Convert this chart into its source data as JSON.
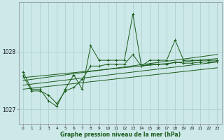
{
  "xlabel_label": "Graphe pression niveau de la mer (hPa)",
  "background_color": "#cce8e8",
  "grid_color": "#aacccc",
  "line_color": "#1a5c1a",
  "xlim": [
    -0.5,
    23.5
  ],
  "ylim": [
    1026.75,
    1028.85
  ],
  "yticks": [
    1027,
    1028
  ],
  "xticks": [
    0,
    1,
    2,
    3,
    4,
    5,
    6,
    7,
    8,
    9,
    10,
    11,
    12,
    13,
    14,
    15,
    16,
    17,
    18,
    19,
    20,
    21,
    22,
    23
  ],
  "y_volatile": [
    1027.65,
    1027.35,
    1027.35,
    1027.15,
    1027.05,
    1027.35,
    1027.6,
    1027.35,
    1028.1,
    1027.85,
    1027.85,
    1027.85,
    1027.85,
    1028.65,
    1027.75,
    1027.85,
    1027.85,
    1027.85,
    1028.2,
    1027.85,
    1027.85,
    1027.85,
    1027.85,
    1027.85
  ],
  "y_smooth": [
    1027.58,
    1027.32,
    1027.32,
    1027.25,
    1027.1,
    1027.32,
    1027.38,
    1027.52,
    1027.75,
    1027.75,
    1027.78,
    1027.78,
    1027.78,
    1027.95,
    1027.75,
    1027.78,
    1027.78,
    1027.78,
    1027.82,
    1027.8,
    1027.8,
    1027.82,
    1027.82,
    1027.83
  ],
  "trend_lines": [
    {
      "x": [
        0,
        23
      ],
      "y": [
        1027.55,
        1027.88
      ]
    },
    {
      "x": [
        0,
        23
      ],
      "y": [
        1027.5,
        1027.95
      ]
    },
    {
      "x": [
        0,
        23
      ],
      "y": [
        1027.42,
        1027.82
      ]
    },
    {
      "x": [
        0,
        23
      ],
      "y": [
        1027.35,
        1027.72
      ]
    }
  ]
}
